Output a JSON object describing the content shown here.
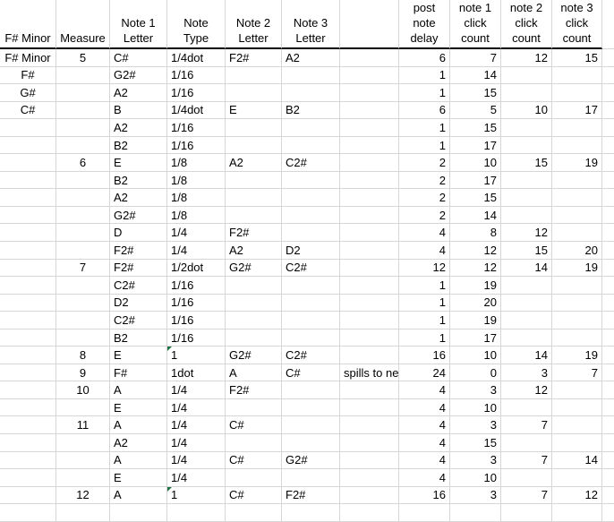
{
  "sheet": {
    "columns": [
      "F# Minor",
      "Measure",
      "Note 1\nLetter",
      "Note\nType",
      "Note 2\nLetter",
      "Note 3\nLetter",
      "",
      "post\nnote\ndelay",
      "note 1\nclick\ncount",
      "note 2\nclick\ncount",
      "note 3\nclick\ncount"
    ],
    "column_alignments": [
      "center",
      "center",
      "left",
      "left",
      "left",
      "left",
      "left",
      "right",
      "right",
      "right",
      "right"
    ],
    "rows": [
      {
        "cells": [
          "F# Minor",
          "5",
          "C#",
          "1/4dot",
          "F2#",
          "A2",
          "",
          "6",
          "7",
          "12",
          "15"
        ],
        "flags": []
      },
      {
        "cells": [
          "F#",
          "",
          "G2#",
          "1/16",
          "",
          "",
          "",
          "1",
          "14",
          "",
          ""
        ],
        "flags": []
      },
      {
        "cells": [
          "G#",
          "",
          "A2",
          "1/16",
          "",
          "",
          "",
          "1",
          "15",
          "",
          ""
        ],
        "flags": []
      },
      {
        "cells": [
          "C#",
          "",
          "B",
          "1/4dot",
          "E",
          "B2",
          "",
          "6",
          "5",
          "10",
          "17"
        ],
        "flags": []
      },
      {
        "cells": [
          "",
          "",
          "A2",
          "1/16",
          "",
          "",
          "",
          "1",
          "15",
          "",
          ""
        ],
        "flags": []
      },
      {
        "cells": [
          "",
          "",
          "B2",
          "1/16",
          "",
          "",
          "",
          "1",
          "17",
          "",
          ""
        ],
        "flags": []
      },
      {
        "cells": [
          "",
          "6",
          "E",
          "1/8",
          "A2",
          "C2#",
          "",
          "2",
          "10",
          "15",
          "19"
        ],
        "flags": []
      },
      {
        "cells": [
          "",
          "",
          "B2",
          "1/8",
          "",
          "",
          "",
          "2",
          "17",
          "",
          ""
        ],
        "flags": []
      },
      {
        "cells": [
          "",
          "",
          "A2",
          "1/8",
          "",
          "",
          "",
          "2",
          "15",
          "",
          ""
        ],
        "flags": []
      },
      {
        "cells": [
          "",
          "",
          "G2#",
          "1/8",
          "",
          "",
          "",
          "2",
          "14",
          "",
          ""
        ],
        "flags": []
      },
      {
        "cells": [
          "",
          "",
          "D",
          "1/4",
          "F2#",
          "",
          "",
          "4",
          "8",
          "12",
          ""
        ],
        "flags": []
      },
      {
        "cells": [
          "",
          "",
          "F2#",
          "1/4",
          "A2",
          "D2",
          "",
          "4",
          "12",
          "15",
          "20"
        ],
        "flags": []
      },
      {
        "cells": [
          "",
          "7",
          "F2#",
          "1/2dot",
          "G2#",
          "C2#",
          "",
          "12",
          "12",
          "14",
          "19"
        ],
        "flags": []
      },
      {
        "cells": [
          "",
          "",
          "C2#",
          "1/16",
          "",
          "",
          "",
          "1",
          "19",
          "",
          ""
        ],
        "flags": []
      },
      {
        "cells": [
          "",
          "",
          "D2",
          "1/16",
          "",
          "",
          "",
          "1",
          "20",
          "",
          ""
        ],
        "flags": []
      },
      {
        "cells": [
          "",
          "",
          "C2#",
          "1/16",
          "",
          "",
          "",
          "1",
          "19",
          "",
          ""
        ],
        "flags": []
      },
      {
        "cells": [
          "",
          "",
          "B2",
          "1/16",
          "",
          "",
          "",
          "1",
          "17",
          "",
          ""
        ],
        "flags": []
      },
      {
        "cells": [
          "",
          "8",
          "E",
          "1",
          "G2#",
          "C2#",
          "",
          "16",
          "10",
          "14",
          "19"
        ],
        "flags": [
          3
        ]
      },
      {
        "cells": [
          "",
          "9",
          "F#",
          "1dot",
          "A",
          "C#",
          "spills to ne",
          "24",
          "0",
          "3",
          "7"
        ],
        "flags": []
      },
      {
        "cells": [
          "",
          "10",
          "A",
          "1/4",
          "F2#",
          "",
          "",
          "4",
          "3",
          "12",
          ""
        ],
        "flags": []
      },
      {
        "cells": [
          "",
          "",
          "E",
          "1/4",
          "",
          "",
          "",
          "4",
          "10",
          "",
          ""
        ],
        "flags": []
      },
      {
        "cells": [
          "",
          "11",
          "A",
          "1/4",
          "C#",
          "",
          "",
          "4",
          "3",
          "7",
          ""
        ],
        "flags": []
      },
      {
        "cells": [
          "",
          "",
          "A2",
          "1/4",
          "",
          "",
          "",
          "4",
          "15",
          "",
          ""
        ],
        "flags": []
      },
      {
        "cells": [
          "",
          "",
          "A",
          "1/4",
          "C#",
          "G2#",
          "",
          "4",
          "3",
          "7",
          "14"
        ],
        "flags": []
      },
      {
        "cells": [
          "",
          "",
          "E",
          "1/4",
          "",
          "",
          "",
          "4",
          "10",
          "",
          ""
        ],
        "flags": []
      },
      {
        "cells": [
          "",
          "12",
          "A",
          "1",
          "C#",
          "F2#",
          "",
          "16",
          "3",
          "7",
          "12"
        ],
        "flags": [
          3
        ]
      },
      {
        "cells": [
          "",
          "",
          "",
          "",
          "",
          "",
          "",
          "",
          "",
          "",
          ""
        ],
        "flags": []
      }
    ],
    "colors": {
      "background": "#ffffff",
      "text": "#000000",
      "gridline": "#d6d6d6",
      "header_border": "#000000",
      "error_indicator_green": "#217346"
    }
  }
}
